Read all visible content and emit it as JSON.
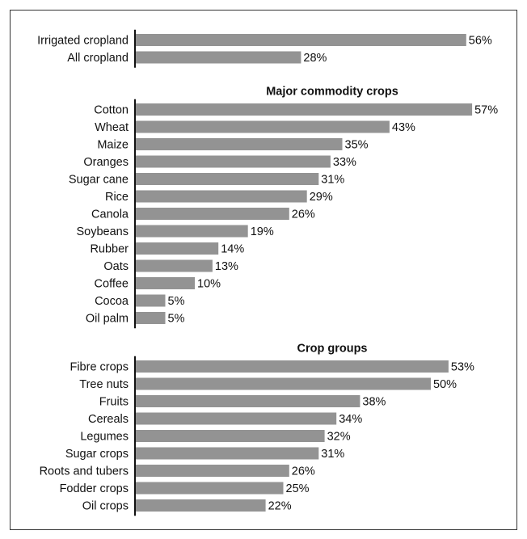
{
  "chart_data": {
    "type": "bar",
    "orientation": "horizontal",
    "unit": "%",
    "xlim": [
      0,
      57
    ],
    "grid": false,
    "legend": "none",
    "bar_color": "#939393",
    "groups": [
      {
        "title": "",
        "items": [
          {
            "label": "Irrigated cropland",
            "value": 56,
            "text": "56%"
          },
          {
            "label": "All cropland",
            "value": 28,
            "text": "28%"
          }
        ]
      },
      {
        "title": "Major commodity crops",
        "items": [
          {
            "label": "Cotton",
            "value": 57,
            "text": "57%"
          },
          {
            "label": "Wheat",
            "value": 43,
            "text": "43%"
          },
          {
            "label": "Maize",
            "value": 35,
            "text": "35%"
          },
          {
            "label": "Oranges",
            "value": 33,
            "text": "33%"
          },
          {
            "label": "Sugar cane",
            "value": 31,
            "text": "31%"
          },
          {
            "label": "Rice",
            "value": 29,
            "text": "29%"
          },
          {
            "label": "Canola",
            "value": 26,
            "text": "26%"
          },
          {
            "label": "Soybeans",
            "value": 19,
            "text": "19%"
          },
          {
            "label": "Rubber",
            "value": 14,
            "text": "14%"
          },
          {
            "label": "Oats",
            "value": 13,
            "text": "13%"
          },
          {
            "label": "Coffee",
            "value": 10,
            "text": "10%"
          },
          {
            "label": "Cocoa",
            "value": 5,
            "text": "5%"
          },
          {
            "label": "Oil palm",
            "value": 5,
            "text": "5%"
          }
        ]
      },
      {
        "title": "Crop groups",
        "items": [
          {
            "label": "Fibre crops",
            "value": 53,
            "text": "53%"
          },
          {
            "label": "Tree nuts",
            "value": 50,
            "text": "50%"
          },
          {
            "label": "Fruits",
            "value": 38,
            "text": "38%"
          },
          {
            "label": "Cereals",
            "value": 34,
            "text": "34%"
          },
          {
            "label": "Legumes",
            "value": 32,
            "text": "32%"
          },
          {
            "label": "Sugar crops",
            "value": 31,
            "text": "31%"
          },
          {
            "label": "Roots and tubers",
            "value": 26,
            "text": "26%"
          },
          {
            "label": "Fodder crops",
            "value": 25,
            "text": "25%"
          },
          {
            "label": "Oil crops",
            "value": 22,
            "text": "22%"
          }
        ]
      }
    ]
  }
}
